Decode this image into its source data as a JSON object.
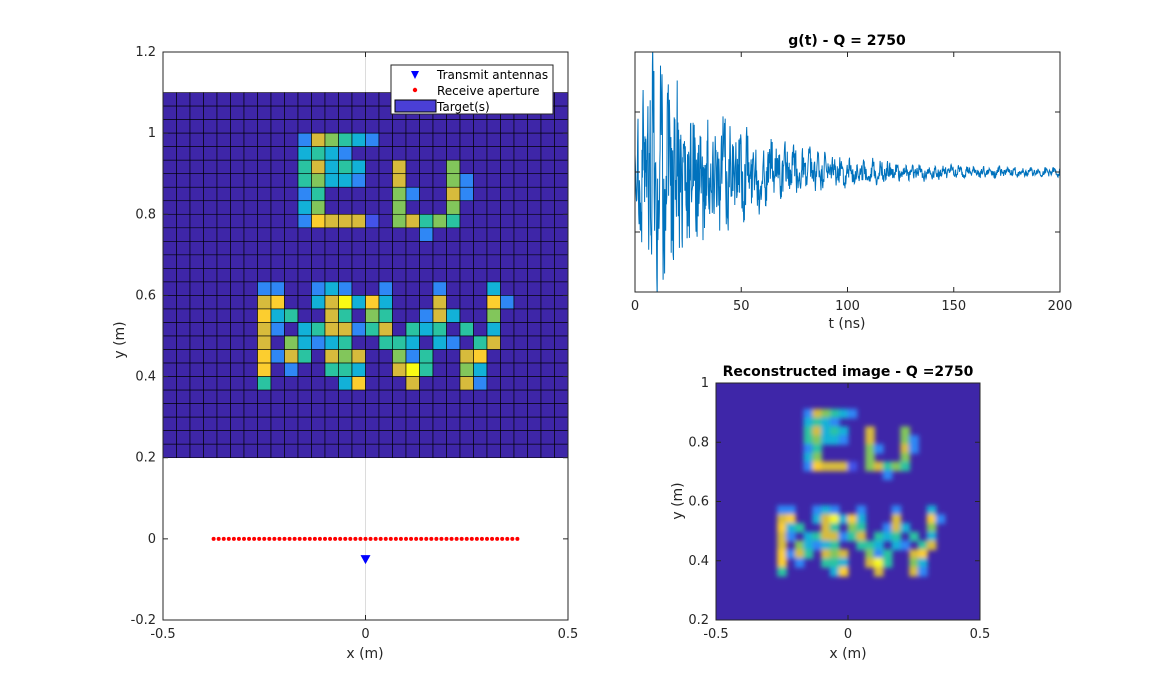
{
  "colors": {
    "background": "#3e26a8",
    "cell_edge": "#000000",
    "signal_line": "#0072bd",
    "transmit_marker": "#0000ff",
    "receive_marker": "#ff0000",
    "target_legend": "#4a3fd6",
    "axes": "#262626",
    "grid": "#dcdcdc"
  },
  "colormap": [
    "#3e26a8",
    "#4353ea",
    "#2f87f5",
    "#12b1d8",
    "#2ac3a1",
    "#82c65b",
    "#d7bb3c",
    "#fcce2f",
    "#f9fb14"
  ],
  "chart_data": [
    {
      "type": "heatmap",
      "title": "",
      "xlabel": "x (m)",
      "ylabel": "y (m)",
      "xlim": [
        -0.5,
        0.5
      ],
      "ylim": [
        -0.2,
        1.2
      ],
      "xticks": [
        "-0.5",
        "0",
        "0.5"
      ],
      "yticks": [
        "-0.2",
        "0",
        "0.2",
        "0.4",
        "0.6",
        "0.8",
        "1",
        "1.2"
      ],
      "grid": "x=0 line only",
      "legend_position": "top-right",
      "legend": [
        "Transmit antennas",
        "Receive aperture",
        "Target(s)"
      ],
      "target_grid": {
        "x_range": [
          -0.5,
          0.5
        ],
        "y_range": [
          0.2,
          1.1
        ],
        "cols": 30,
        "rows": 27,
        "cells": [
          {
            "r": 3,
            "c": 10,
            "v": 2
          },
          {
            "r": 3,
            "c": 11,
            "v": 6
          },
          {
            "r": 3,
            "c": 12,
            "v": 5
          },
          {
            "r": 3,
            "c": 13,
            "v": 4
          },
          {
            "r": 3,
            "c": 14,
            "v": 3
          },
          {
            "r": 3,
            "c": 15,
            "v": 2
          },
          {
            "r": 4,
            "c": 10,
            "v": 3
          },
          {
            "r": 4,
            "c": 11,
            "v": 4
          },
          {
            "r": 4,
            "c": 12,
            "v": 3
          },
          {
            "r": 4,
            "c": 13,
            "v": 2
          },
          {
            "r": 5,
            "c": 10,
            "v": 4
          },
          {
            "r": 5,
            "c": 11,
            "v": 6
          },
          {
            "r": 5,
            "c": 12,
            "v": 3
          },
          {
            "r": 5,
            "c": 13,
            "v": 4
          },
          {
            "r": 5,
            "c": 14,
            "v": 3
          },
          {
            "r": 5,
            "c": 17,
            "v": 6
          },
          {
            "r": 5,
            "c": 21,
            "v": 5
          },
          {
            "r": 6,
            "c": 10,
            "v": 4
          },
          {
            "r": 6,
            "c": 11,
            "v": 5
          },
          {
            "r": 6,
            "c": 12,
            "v": 3
          },
          {
            "r": 6,
            "c": 13,
            "v": 3
          },
          {
            "r": 6,
            "c": 14,
            "v": 2
          },
          {
            "r": 6,
            "c": 17,
            "v": 6
          },
          {
            "r": 6,
            "c": 21,
            "v": 5
          },
          {
            "r": 6,
            "c": 22,
            "v": 2
          },
          {
            "r": 7,
            "c": 10,
            "v": 2
          },
          {
            "r": 7,
            "c": 11,
            "v": 4
          },
          {
            "r": 7,
            "c": 17,
            "v": 5
          },
          {
            "r": 7,
            "c": 18,
            "v": 2
          },
          {
            "r": 7,
            "c": 21,
            "v": 6
          },
          {
            "r": 7,
            "c": 22,
            "v": 2
          },
          {
            "r": 8,
            "c": 10,
            "v": 3
          },
          {
            "r": 8,
            "c": 11,
            "v": 5
          },
          {
            "r": 8,
            "c": 17,
            "v": 5
          },
          {
            "r": 8,
            "c": 21,
            "v": 5
          },
          {
            "r": 9,
            "c": 10,
            "v": 2
          },
          {
            "r": 9,
            "c": 11,
            "v": 7
          },
          {
            "r": 9,
            "c": 12,
            "v": 6
          },
          {
            "r": 9,
            "c": 13,
            "v": 6
          },
          {
            "r": 9,
            "c": 14,
            "v": 6
          },
          {
            "r": 9,
            "c": 15,
            "v": 1
          },
          {
            "r": 9,
            "c": 17,
            "v": 5
          },
          {
            "r": 9,
            "c": 18,
            "v": 6
          },
          {
            "r": 9,
            "c": 19,
            "v": 4
          },
          {
            "r": 9,
            "c": 20,
            "v": 5
          },
          {
            "r": 9,
            "c": 21,
            "v": 4
          },
          {
            "r": 10,
            "c": 19,
            "v": 2
          },
          {
            "r": 14,
            "c": 7,
            "v": 2
          },
          {
            "r": 14,
            "c": 8,
            "v": 2
          },
          {
            "r": 14,
            "c": 11,
            "v": 2
          },
          {
            "r": 14,
            "c": 12,
            "v": 3
          },
          {
            "r": 14,
            "c": 13,
            "v": 2
          },
          {
            "r": 14,
            "c": 16,
            "v": 2
          },
          {
            "r": 14,
            "c": 20,
            "v": 2
          },
          {
            "r": 14,
            "c": 24,
            "v": 3
          },
          {
            "r": 15,
            "c": 7,
            "v": 6
          },
          {
            "r": 15,
            "c": 8,
            "v": 7
          },
          {
            "r": 15,
            "c": 11,
            "v": 3
          },
          {
            "r": 15,
            "c": 12,
            "v": 6
          },
          {
            "r": 15,
            "c": 13,
            "v": 8
          },
          {
            "r": 15,
            "c": 14,
            "v": 3
          },
          {
            "r": 15,
            "c": 15,
            "v": 7
          },
          {
            "r": 15,
            "c": 16,
            "v": 3
          },
          {
            "r": 15,
            "c": 20,
            "v": 6
          },
          {
            "r": 15,
            "c": 24,
            "v": 7
          },
          {
            "r": 15,
            "c": 25,
            "v": 2
          },
          {
            "r": 16,
            "c": 7,
            "v": 7
          },
          {
            "r": 16,
            "c": 8,
            "v": 3
          },
          {
            "r": 16,
            "c": 9,
            "v": 4
          },
          {
            "r": 16,
            "c": 12,
            "v": 6
          },
          {
            "r": 16,
            "c": 13,
            "v": 4
          },
          {
            "r": 16,
            "c": 15,
            "v": 5
          },
          {
            "r": 16,
            "c": 16,
            "v": 4
          },
          {
            "r": 16,
            "c": 19,
            "v": 2
          },
          {
            "r": 16,
            "c": 20,
            "v": 6
          },
          {
            "r": 16,
            "c": 21,
            "v": 3
          },
          {
            "r": 16,
            "c": 24,
            "v": 5
          },
          {
            "r": 17,
            "c": 7,
            "v": 6
          },
          {
            "r": 17,
            "c": 8,
            "v": 2
          },
          {
            "r": 17,
            "c": 10,
            "v": 3
          },
          {
            "r": 17,
            "c": 11,
            "v": 4
          },
          {
            "r": 17,
            "c": 12,
            "v": 6
          },
          {
            "r": 17,
            "c": 13,
            "v": 6
          },
          {
            "r": 17,
            "c": 14,
            "v": 2
          },
          {
            "r": 17,
            "c": 15,
            "v": 4
          },
          {
            "r": 17,
            "c": 16,
            "v": 6
          },
          {
            "r": 17,
            "c": 18,
            "v": 4
          },
          {
            "r": 17,
            "c": 19,
            "v": 3
          },
          {
            "r": 17,
            "c": 20,
            "v": 4
          },
          {
            "r": 17,
            "c": 22,
            "v": 4
          },
          {
            "r": 17,
            "c": 24,
            "v": 3
          },
          {
            "r": 18,
            "c": 7,
            "v": 6
          },
          {
            "r": 18,
            "c": 9,
            "v": 5
          },
          {
            "r": 18,
            "c": 10,
            "v": 3
          },
          {
            "r": 18,
            "c": 11,
            "v": 2
          },
          {
            "r": 18,
            "c": 12,
            "v": 3
          },
          {
            "r": 18,
            "c": 13,
            "v": 4
          },
          {
            "r": 18,
            "c": 16,
            "v": 4
          },
          {
            "r": 18,
            "c": 17,
            "v": 4
          },
          {
            "r": 18,
            "c": 18,
            "v": 3
          },
          {
            "r": 18,
            "c": 20,
            "v": 3
          },
          {
            "r": 18,
            "c": 21,
            "v": 2
          },
          {
            "r": 18,
            "c": 23,
            "v": 4
          },
          {
            "r": 18,
            "c": 24,
            "v": 6
          },
          {
            "r": 19,
            "c": 7,
            "v": 7
          },
          {
            "r": 19,
            "c": 8,
            "v": 2
          },
          {
            "r": 19,
            "c": 9,
            "v": 6
          },
          {
            "r": 19,
            "c": 10,
            "v": 4
          },
          {
            "r": 19,
            "c": 12,
            "v": 6
          },
          {
            "r": 19,
            "c": 13,
            "v": 5
          },
          {
            "r": 19,
            "c": 14,
            "v": 6
          },
          {
            "r": 19,
            "c": 17,
            "v": 5
          },
          {
            "r": 19,
            "c": 18,
            "v": 2
          },
          {
            "r": 19,
            "c": 19,
            "v": 4
          },
          {
            "r": 19,
            "c": 22,
            "v": 6
          },
          {
            "r": 19,
            "c": 23,
            "v": 7
          },
          {
            "r": 20,
            "c": 7,
            "v": 7
          },
          {
            "r": 20,
            "c": 9,
            "v": 2
          },
          {
            "r": 20,
            "c": 12,
            "v": 4
          },
          {
            "r": 20,
            "c": 13,
            "v": 4
          },
          {
            "r": 20,
            "c": 14,
            "v": 3
          },
          {
            "r": 20,
            "c": 17,
            "v": 6
          },
          {
            "r": 20,
            "c": 18,
            "v": 8
          },
          {
            "r": 20,
            "c": 19,
            "v": 4
          },
          {
            "r": 20,
            "c": 22,
            "v": 5
          },
          {
            "r": 20,
            "c": 23,
            "v": 3
          },
          {
            "r": 21,
            "c": 7,
            "v": 4
          },
          {
            "r": 21,
            "c": 13,
            "v": 3
          },
          {
            "r": 21,
            "c": 14,
            "v": 7
          },
          {
            "r": 21,
            "c": 18,
            "v": 6
          },
          {
            "r": 21,
            "c": 22,
            "v": 6
          },
          {
            "r": 21,
            "c": 23,
            "v": 2
          }
        ]
      },
      "receive_aperture": {
        "y": 0.0,
        "x_from": -0.375,
        "x_to": 0.375,
        "count": 61
      },
      "transmit_antennas": [
        {
          "x": 0.0,
          "y": -0.05
        }
      ]
    },
    {
      "type": "line",
      "title": "g(t) - Q = 2750",
      "xlabel": "t (ns)",
      "ylabel": "",
      "xlim": [
        0,
        200
      ],
      "ylim": [
        -1,
        1
      ],
      "xticks": [
        "0",
        "50",
        "100",
        "150",
        "200"
      ],
      "yticks": [
        "",
        "",
        ""
      ],
      "grid": "off",
      "series": [
        {
          "n": 1150,
          "start_ns": 0,
          "step_ns": 0.174,
          "peak_ns": 6,
          "decay_ns": 38,
          "seed": 2750
        }
      ]
    },
    {
      "type": "heatmap",
      "title": "Reconstructed image - Q =2750",
      "xlabel": "x (m)",
      "ylabel": "y (m)",
      "xlim": [
        -0.5,
        0.5
      ],
      "ylim": [
        0.2,
        1.1
      ],
      "xticks": [
        "-0.5",
        "0",
        "0.5"
      ],
      "yticks": [
        "0.2",
        "0.4",
        "0.6",
        "0.8",
        "1"
      ],
      "grid": "off",
      "blur": true
    }
  ]
}
